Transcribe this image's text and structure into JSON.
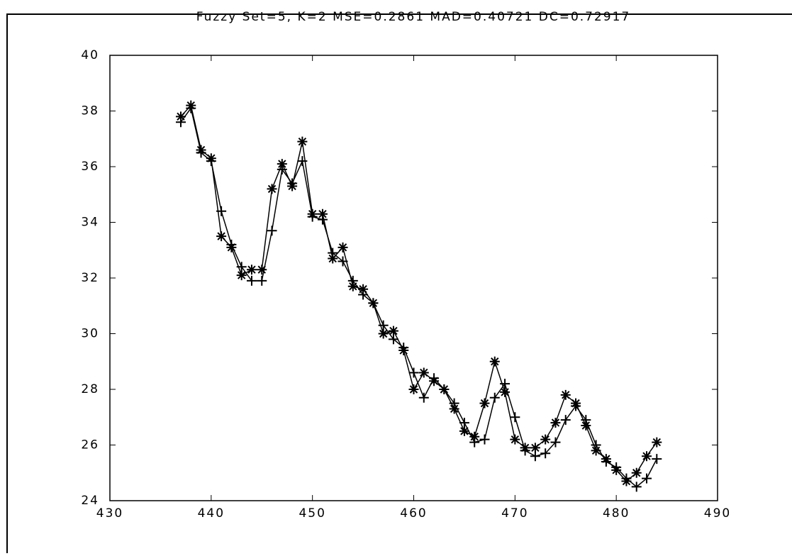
{
  "chart_data": {
    "type": "line",
    "title": "Fuzzy Set=5, K=2 MSE=0.2861 MAD=0.40721 DC=0.72917",
    "x": [
      437,
      438,
      439,
      440,
      441,
      442,
      443,
      444,
      445,
      446,
      447,
      448,
      449,
      450,
      451,
      452,
      453,
      454,
      455,
      456,
      457,
      458,
      459,
      460,
      461,
      462,
      463,
      464,
      465,
      466,
      467,
      468,
      469,
      470,
      471,
      472,
      473,
      474,
      475,
      476,
      477,
      478,
      479,
      480,
      481,
      482,
      483,
      484
    ],
    "series": [
      {
        "marker": "*",
        "color": "#000000",
        "values": [
          37.8,
          38.2,
          36.6,
          36.3,
          33.5,
          33.1,
          32.1,
          32.3,
          32.3,
          35.2,
          36.1,
          35.3,
          36.9,
          34.3,
          34.3,
          32.7,
          33.1,
          31.7,
          31.6,
          31.1,
          30.0,
          30.1,
          29.4,
          28.0,
          28.6,
          28.3,
          28.0,
          27.3,
          26.5,
          26.3,
          27.5,
          29.0,
          27.9,
          26.2,
          25.9,
          25.9,
          26.2,
          26.8,
          27.8,
          27.5,
          26.7,
          25.8,
          25.5,
          25.1,
          24.7,
          25.0,
          25.6,
          26.1
        ]
      },
      {
        "marker": "+",
        "color": "#000000",
        "values": [
          37.6,
          38.1,
          36.5,
          36.2,
          34.4,
          33.2,
          32.4,
          31.9,
          31.9,
          33.7,
          35.9,
          35.4,
          36.2,
          34.2,
          34.1,
          32.9,
          32.6,
          31.9,
          31.4,
          31.1,
          30.3,
          29.8,
          29.5,
          28.6,
          27.7,
          28.4,
          28.0,
          27.5,
          26.8,
          26.1,
          26.2,
          27.7,
          28.2,
          27.0,
          25.8,
          25.6,
          25.7,
          26.1,
          26.9,
          27.4,
          26.9,
          26.0,
          25.4,
          25.2,
          24.8,
          24.5,
          24.8,
          25.5
        ]
      }
    ],
    "xlim": [
      430,
      490
    ],
    "xticks": [
      430,
      440,
      450,
      460,
      470,
      480,
      490
    ],
    "ylim": [
      24,
      40
    ],
    "yticks": [
      24,
      26,
      28,
      30,
      32,
      34,
      36,
      38,
      40
    ]
  }
}
